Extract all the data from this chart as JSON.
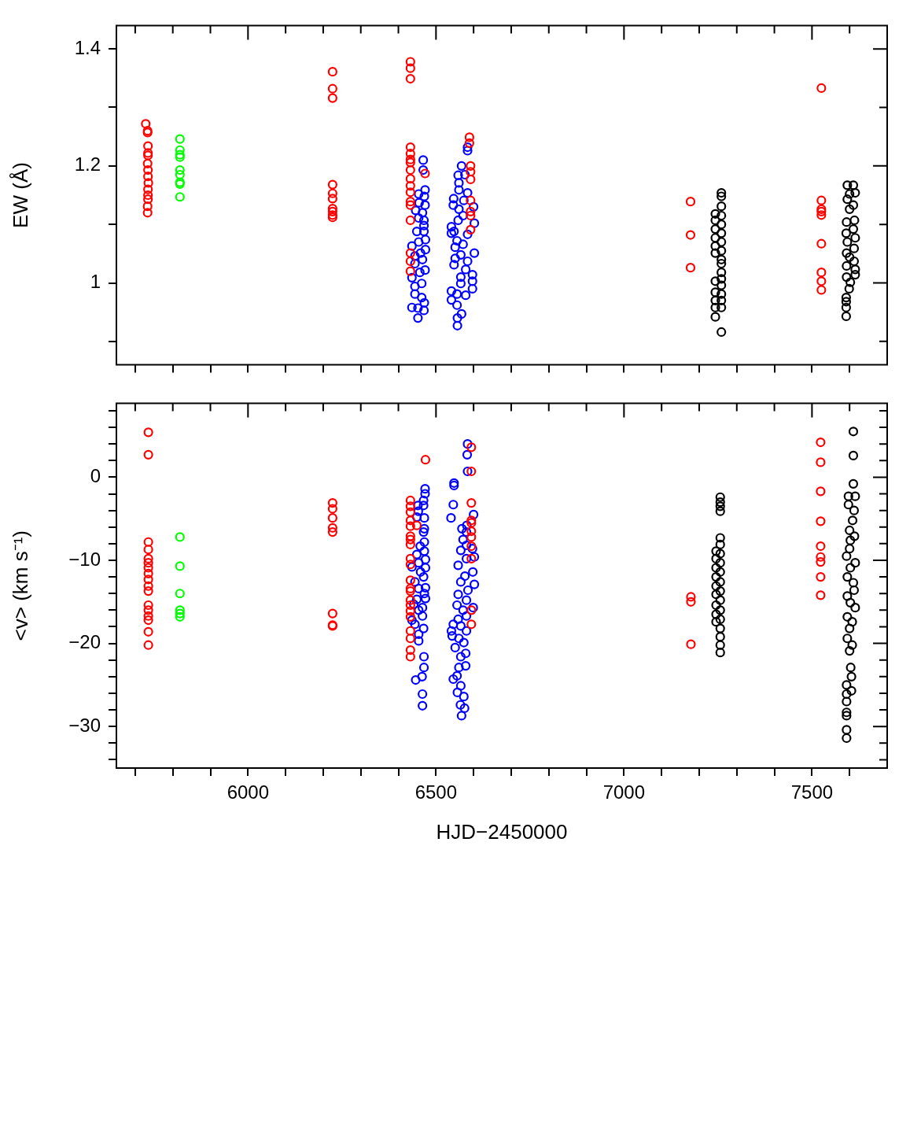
{
  "chart_data": [
    {
      "type": "scatter",
      "ylabel": "EW (Å)",
      "marker": "circle",
      "tick_labels": "y",
      "xlim": [
        5650,
        7700
      ],
      "xticks": [
        {
          "value": 5700,
          "label": null
        },
        {
          "value": 5800,
          "label": null
        },
        {
          "value": 5900,
          "label": null
        },
        6000,
        {
          "value": 6100,
          "label": null
        },
        {
          "value": 6200,
          "label": null
        },
        {
          "value": 6300,
          "label": null
        },
        {
          "value": 6400,
          "label": null
        },
        6500,
        {
          "value": 6600,
          "label": null
        },
        {
          "value": 6700,
          "label": null
        },
        {
          "value": 6800,
          "label": null
        },
        {
          "value": 6900,
          "label": null
        },
        7000,
        {
          "value": 7100,
          "label": null
        },
        {
          "value": 7200,
          "label": null
        },
        {
          "value": 7300,
          "label": null
        },
        {
          "value": 7400,
          "label": null
        },
        7500,
        {
          "value": 7600,
          "label": null
        }
      ],
      "ylim": [
        0.86,
        1.44
      ],
      "yticks": [
        {
          "value": 0.9,
          "label": null
        },
        1,
        {
          "value": 1.1,
          "label": null
        },
        1.2,
        {
          "value": 1.3,
          "label": null
        },
        1.4
      ],
      "series": [
        {
          "color": "#ff0000",
          "x": [
            5728,
            5733,
            5733,
            5734,
            5734,
            5734,
            5733,
            5734,
            5734,
            5735,
            5734,
            5734,
            5734,
            5733,
            5733,
            6225,
            6225,
            6225,
            6225,
            6225,
            6225,
            6225,
            6225,
            6225,
            6225,
            6432,
            6432,
            6432,
            6432,
            6432,
            6432,
            6432,
            6432,
            6432,
            6432,
            6432,
            6432,
            6432,
            6432,
            6432,
            6432,
            6432,
            6471,
            6589,
            6589,
            6592,
            6592,
            6592,
            6592,
            6592,
            6592,
            6592,
            7177,
            7177,
            7177,
            7525,
            7525,
            7525,
            7525,
            7525,
            7525,
            7525,
            7525,
            7525
          ],
          "values": [
            1.272,
            1.26,
            1.257,
            1.234,
            1.222,
            1.218,
            1.204,
            1.193,
            1.182,
            1.171,
            1.16,
            1.15,
            1.143,
            1.131,
            1.12,
            1.361,
            1.332,
            1.316,
            1.168,
            1.153,
            1.144,
            1.127,
            1.122,
            1.116,
            1.112,
            1.378,
            1.367,
            1.349,
            1.232,
            1.221,
            1.211,
            1.206,
            1.193,
            1.178,
            1.166,
            1.155,
            1.139,
            1.133,
            1.107,
            1.051,
            1.037,
            1.02,
            1.187,
            1.249,
            1.239,
            1.2,
            1.19,
            1.177,
            1.141,
            1.122,
            1.115,
            1.091,
            1.139,
            1.082,
            1.026,
            1.333,
            1.141,
            1.126,
            1.122,
            1.116,
            1.067,
            1.018,
            1.003,
            0.988
          ]
        },
        {
          "color": "#00ff00",
          "x": [
            5819,
            5819,
            5819,
            5819,
            5819,
            5819,
            5819,
            5819,
            5819
          ],
          "values": [
            1.246,
            1.227,
            1.219,
            1.215,
            1.193,
            1.185,
            1.172,
            1.169,
            1.147
          ]
        },
        {
          "color": "#0000ff",
          "x": [
            6466,
            6466,
            6471,
            6469,
            6454,
            6471,
            6455,
            6446,
            6464,
            6454,
            6468,
            6468,
            6468,
            6449,
            6472,
            6454,
            6436,
            6472,
            6459,
            6444,
            6464,
            6444,
            6471,
            6457,
            6436,
            6462,
            6444,
            6444,
            6462,
            6469,
            6436,
            6452,
            6468,
            6452,
            6584,
            6584,
            6568,
            6577,
            6559,
            6561,
            6561,
            6584,
            6547,
            6574,
            6546,
            6600,
            6561,
            6572,
            6559,
            6602,
            6541,
            6548,
            6541,
            6584,
            6556,
            6572,
            6551,
            6602,
            6566,
            6551,
            6584,
            6548,
            6579,
            6597,
            6566,
            6597,
            6566,
            6597,
            6541,
            6579,
            6556,
            6541,
            6556,
            6568,
            6557,
            6557
          ],
          "values": [
            1.21,
            1.193,
            1.159,
            1.148,
            1.152,
            1.133,
            1.137,
            1.124,
            1.12,
            1.111,
            1.107,
            1.098,
            1.088,
            1.088,
            1.074,
            1.07,
            1.063,
            1.057,
            1.051,
            1.046,
            1.04,
            1.033,
            1.022,
            1.018,
            1.009,
            0.999,
            0.994,
            0.981,
            0.975,
            0.966,
            0.958,
            0.957,
            0.953,
            0.94,
            1.232,
            1.226,
            1.2,
            1.185,
            1.184,
            1.171,
            1.159,
            1.154,
            1.144,
            1.141,
            1.133,
            1.13,
            1.126,
            1.115,
            1.107,
            1.102,
            1.096,
            1.088,
            1.085,
            1.083,
            1.072,
            1.066,
            1.061,
            1.051,
            1.048,
            1.042,
            1.037,
            1.031,
            1.023,
            1.014,
            1.01,
            1.003,
            0.999,
            0.99,
            0.986,
            0.979,
            0.981,
            0.971,
            0.962,
            0.947,
            0.94,
            0.927
          ]
        },
        {
          "color": "#000000",
          "x": [
            7259,
            7259,
            7259,
            7259,
            7259,
            7259,
            7259,
            7259,
            7259,
            7259,
            7259,
            7259,
            7259,
            7259,
            7259,
            7259,
            7259,
            7243,
            7243,
            7243,
            7243,
            7243,
            7243,
            7243,
            7243,
            7243,
            7243,
            7243,
            7610,
            7615,
            7594,
            7600,
            7594,
            7610,
            7600,
            7613,
            7592,
            7610,
            7591,
            7615,
            7594,
            7612,
            7592,
            7600,
            7612,
            7592,
            7615,
            7615,
            7592,
            7602,
            7599,
            7591,
            7591,
            7591,
            7591
          ],
          "values": [
            1.154,
            1.148,
            1.131,
            1.115,
            1.1,
            1.085,
            1.07,
            1.055,
            1.04,
            1.033,
            1.018,
            1.007,
            0.996,
            0.981,
            0.97,
            0.958,
            0.916,
            1.118,
            1.107,
            1.092,
            1.077,
            1.063,
            1.051,
            1.003,
            0.984,
            0.97,
            0.958,
            0.942,
            1.167,
            1.154,
            1.167,
            1.152,
            1.143,
            1.133,
            1.126,
            1.107,
            1.104,
            1.092,
            1.085,
            1.077,
            1.07,
            1.059,
            1.051,
            1.044,
            1.037,
            1.029,
            1.023,
            1.014,
            1.01,
            1.001,
            0.99,
            0.975,
            0.968,
            0.958,
            0.943
          ]
        }
      ]
    },
    {
      "type": "scatter",
      "xlabel": "HJD−2450000",
      "ylabel": "<v> (km s⁻¹)",
      "marker": "circle",
      "xlim": [
        5650,
        7700
      ],
      "xticks": [
        {
          "value": 5700,
          "label": null
        },
        {
          "value": 5800,
          "label": null
        },
        {
          "value": 5900,
          "label": null
        },
        6000,
        {
          "value": 6100,
          "label": null
        },
        {
          "value": 6200,
          "label": null
        },
        {
          "value": 6300,
          "label": null
        },
        {
          "value": 6400,
          "label": null
        },
        6500,
        {
          "value": 6600,
          "label": null
        },
        {
          "value": 6700,
          "label": null
        },
        {
          "value": 6800,
          "label": null
        },
        {
          "value": 6900,
          "label": null
        },
        7000,
        {
          "value": 7100,
          "label": null
        },
        {
          "value": 7200,
          "label": null
        },
        {
          "value": 7300,
          "label": null
        },
        {
          "value": 7400,
          "label": null
        },
        7500,
        {
          "value": 7600,
          "label": null
        }
      ],
      "ylim": [
        -35,
        8.9
      ],
      "yticks": [
        {
          "value": -34,
          "label": null
        },
        {
          "value": -32,
          "label": null
        },
        {
          "value": -30,
          "label": "−30"
        },
        {
          "value": -28,
          "label": null
        },
        {
          "value": -26,
          "label": null
        },
        {
          "value": -24,
          "label": null
        },
        {
          "value": -22,
          "label": null
        },
        {
          "value": -20,
          "label": "−20"
        },
        {
          "value": -18,
          "label": null
        },
        {
          "value": -16,
          "label": null
        },
        {
          "value": -14,
          "label": null
        },
        {
          "value": -12,
          "label": null
        },
        {
          "value": -10,
          "label": "−10"
        },
        {
          "value": -8,
          "label": null
        },
        {
          "value": -6,
          "label": null
        },
        {
          "value": -4,
          "label": null
        },
        {
          "value": -2,
          "label": null
        },
        0,
        {
          "value": 2,
          "label": null
        },
        {
          "value": 4,
          "label": null
        },
        {
          "value": 6,
          "label": null
        },
        {
          "value": 8,
          "label": null
        }
      ],
      "series": [
        {
          "color": "#ff0000",
          "x": [
            5735,
            5735,
            5735,
            5735,
            5735,
            5735,
            5735,
            5735,
            5735,
            5735,
            5735,
            5735,
            5735,
            5735,
            5735,
            5735,
            5735,
            6225,
            6225,
            6225,
            6225,
            6225,
            6225,
            6225,
            6225,
            6432,
            6432,
            6432,
            6432,
            6432,
            6432,
            6432,
            6432,
            6432,
            6432,
            6432,
            6432,
            6432,
            6432,
            6432,
            6432,
            6432,
            6432,
            6432,
            6432,
            6432,
            6449,
            6472,
            6594,
            6594,
            6594,
            6594,
            6594,
            6594,
            6594,
            6594,
            6594,
            6594,
            6594,
            7178,
            7178,
            7178,
            7523,
            7523,
            7523,
            7523,
            7523,
            7523,
            7523,
            7523,
            7523
          ],
          "values": [
            5.4,
            2.7,
            -7.8,
            -8.7,
            -9.8,
            -10.3,
            -10.9,
            -11.6,
            -12.3,
            -13.1,
            -13.7,
            -15.4,
            -16.0,
            -16.7,
            -17.2,
            -18.6,
            -20.2,
            -3.1,
            -3.8,
            -4.9,
            -6.1,
            -6.6,
            -16.4,
            -17.8,
            -17.9,
            -2.8,
            -3.5,
            -4.2,
            -5.2,
            -5.9,
            -7.1,
            -7.5,
            -8.1,
            -9.8,
            -10.5,
            -12.4,
            -13.4,
            -13.7,
            -14.8,
            -15.4,
            -16.1,
            -16.8,
            -18.5,
            -19.4,
            -20.8,
            -21.6,
            -5.8,
            2.1,
            3.6,
            0.7,
            -3.1,
            -5.2,
            -5.5,
            -6.5,
            -7.2,
            -8.3,
            -9.8,
            -16.0,
            -17.7,
            -14.4,
            -15.0,
            -20.1,
            4.2,
            1.8,
            -1.7,
            -5.3,
            -8.3,
            -9.6,
            -10.2,
            -12.0,
            -14.2
          ]
        },
        {
          "color": "#00ff00",
          "x": [
            5819,
            5819,
            5819,
            5819,
            5819,
            5819
          ],
          "values": [
            -7.2,
            -10.7,
            -14.0,
            -16.0,
            -16.4,
            -16.8
          ]
        },
        {
          "color": "#0000ff",
          "x": [
            6584,
            6583,
            6584,
            6548,
            6548,
            6546,
            6600,
            6540,
            6582,
            6569,
            6581,
            6572,
            6581,
            6597,
            6566,
            6602,
            6581,
            6559,
            6598,
            6577,
            6566,
            6602,
            6585,
            6559,
            6581,
            6556,
            6599,
            6572,
            6581,
            6559,
            6546,
            6566,
            6581,
            6541,
            6543,
            6561,
            6574,
            6551,
            6579,
            6566,
            6579,
            6561,
            6556,
            6546,
            6566,
            6557,
            6574,
            6565,
            6576,
            6568,
            6471,
            6471,
            6467,
            6467,
            6452,
            6453,
            6469,
            6449,
            6469,
            6467,
            6469,
            6458,
            6469,
            6449,
            6472,
            6454,
            6472,
            6436,
            6459,
            6467,
            6444,
            6472,
            6454,
            6469,
            6472,
            6449,
            6441,
            6464,
            6454,
            6464,
            6436,
            6444,
            6467,
            6454,
            6454,
            6468,
            6468,
            6463,
            6446,
            6464,
            6464
          ],
          "values": [
            4.0,
            2.7,
            0.7,
            -0.7,
            -1.0,
            -3.3,
            -4.5,
            -4.9,
            -5.8,
            -6.2,
            -6.6,
            -7.5,
            -8.2,
            -8.6,
            -8.8,
            -9.6,
            -9.8,
            -10.6,
            -11.4,
            -11.9,
            -12.6,
            -12.9,
            -13.6,
            -14.1,
            -14.8,
            -15.4,
            -15.7,
            -16.0,
            -16.7,
            -17.1,
            -17.7,
            -17.9,
            -18.5,
            -18.5,
            -19.1,
            -19.4,
            -19.9,
            -20.5,
            -21.2,
            -21.6,
            -22.7,
            -22.9,
            -23.9,
            -24.3,
            -25.1,
            -25.9,
            -26.4,
            -27.4,
            -27.8,
            -28.7,
            -1.4,
            -2.0,
            -2.8,
            -3.4,
            -3.4,
            -4.1,
            -4.9,
            -4.8,
            -6.2,
            -6.6,
            -7.8,
            -8.3,
            -8.9,
            -9.3,
            -9.9,
            -10.3,
            -10.9,
            -10.8,
            -11.4,
            -12.0,
            -12.6,
            -13.3,
            -13.4,
            -14.0,
            -14.6,
            -14.7,
            -15.3,
            -15.7,
            -16.0,
            -16.7,
            -17.2,
            -17.7,
            -18.2,
            -18.9,
            -19.7,
            -21.6,
            -22.9,
            -24.0,
            -24.4,
            -26.1,
            -27.5
          ]
        },
        {
          "color": "#000000",
          "x": [
            7256,
            7256,
            7256,
            7256,
            7256,
            7256,
            7256,
            7256,
            7256,
            7256,
            7256,
            7256,
            7256,
            7256,
            7256,
            7256,
            7256,
            7256,
            7245,
            7245,
            7245,
            7245,
            7245,
            7245,
            7245,
            7245,
            7245,
            7610,
            7610,
            7610,
            7615,
            7597,
            7597,
            7612,
            7608,
            7600,
            7613,
            7602,
            7600,
            7592,
            7615,
            7602,
            7594,
            7610,
            7612,
            7594,
            7602,
            7615,
            7594,
            7607,
            7600,
            7594,
            7607,
            7600,
            7603,
            7605,
            7592,
            7605,
            7592,
            7592,
            7592,
            7592,
            7592,
            7592
          ],
          "values": [
            -2.4,
            -3.0,
            -3.5,
            -4.1,
            -7.3,
            -8.1,
            -9.2,
            -10.3,
            -11.4,
            -12.6,
            -13.7,
            -14.8,
            -16.0,
            -17.1,
            -18.2,
            -19.2,
            -20.2,
            -21.1,
            -8.9,
            -9.8,
            -10.9,
            -12.0,
            -13.1,
            -14.1,
            -15.4,
            -16.5,
            -17.4,
            5.5,
            2.6,
            -0.8,
            -2.3,
            -2.3,
            -3.3,
            -4.0,
            -5.2,
            -6.4,
            -7.1,
            -7.6,
            -8.6,
            -9.5,
            -10.3,
            -10.9,
            -12.0,
            -12.7,
            -13.6,
            -14.3,
            -15.1,
            -15.7,
            -16.8,
            -17.4,
            -18.2,
            -19.4,
            -20.2,
            -20.9,
            -22.9,
            -24.0,
            -25.0,
            -25.7,
            -26.1,
            -27.0,
            -28.3,
            -28.7,
            -30.4,
            -31.4
          ]
        }
      ]
    }
  ]
}
